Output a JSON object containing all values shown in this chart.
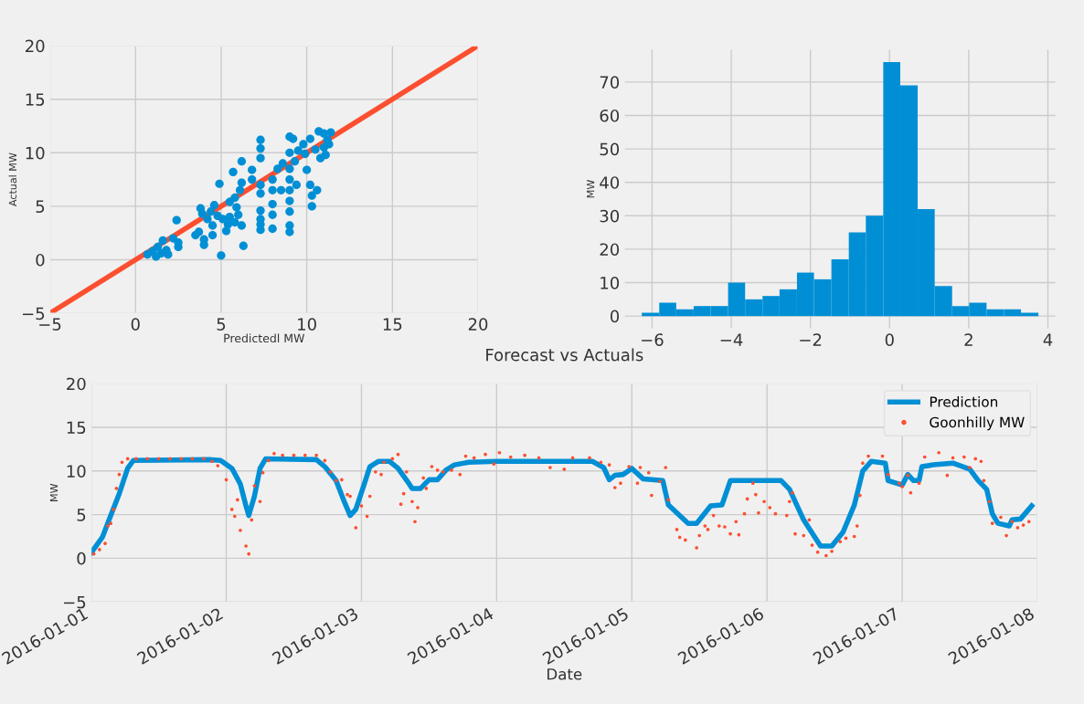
{
  "chart_data": [
    {
      "type": "scatter",
      "xlabel": "Predictedl MW",
      "ylabel": "Actual MW",
      "xlim": [
        -5,
        20
      ],
      "ylim": [
        -5,
        20
      ],
      "xticks": [
        {
          "value": -5,
          "label": "−5"
        },
        0,
        5,
        10,
        15,
        20
      ],
      "yticks": [
        {
          "value": -5,
          "label": "−5"
        },
        0,
        5,
        10,
        15,
        20
      ],
      "grid": true,
      "series": [
        {
          "color": "#008fd5",
          "marker": "circle",
          "x": [
            0.7,
            1.0,
            1.2,
            1.3,
            1.5,
            1.6,
            1.8,
            1.9,
            2.2,
            2.4,
            2.5,
            2.5,
            3.5,
            3.7,
            3.8,
            3.9,
            4.0,
            4.0,
            4.2,
            4.4,
            4.5,
            4.5,
            4.6,
            4.8,
            4.9,
            5.0,
            5.1,
            5.3,
            5.4,
            5.5,
            5.5,
            5.8,
            5.8,
            5.9,
            6.0,
            6.1,
            6.2,
            6.2,
            6.2,
            6.3,
            5.7,
            6.8,
            6.8,
            7.3,
            7.3,
            7.3,
            7.3,
            7.3,
            7.3,
            7.3,
            7.3,
            7.3,
            8.0,
            8.0,
            8.0,
            8.0,
            8.0,
            8.3,
            8.5,
            8.6,
            9.0,
            9.0,
            9.0,
            9.0,
            9.0,
            9.0,
            9.0,
            9.0,
            9.0,
            9.2,
            9.3,
            9.4,
            9.5,
            9.8,
            9.9,
            10.0,
            10.2,
            10.2,
            10.3,
            10.3,
            10.5,
            10.6,
            10.7,
            10.8,
            11.0,
            11.0,
            11.1,
            11.2,
            11.4,
            11.3
          ],
          "values": [
            0.5,
            0.8,
            0.3,
            1.2,
            0.6,
            1.8,
            0.9,
            0.5,
            2.0,
            3.7,
            1.2,
            1.6,
            2.3,
            2.6,
            4.8,
            4.3,
            1.4,
            1.9,
            3.8,
            4.5,
            2.3,
            3.2,
            5.1,
            4.1,
            7.1,
            0.4,
            3.8,
            2.7,
            3.3,
            4.0,
            5.4,
            5.8,
            3.5,
            4.9,
            4.2,
            6.5,
            3.2,
            7.2,
            9.2,
            1.3,
            8.2,
            8.4,
            7.5,
            11.2,
            10.4,
            9.5,
            7.0,
            6.2,
            4.6,
            3.8,
            3.3,
            2.8,
            7.5,
            6.5,
            5.2,
            4.2,
            2.9,
            8.5,
            6.5,
            9.0,
            11.5,
            10.0,
            8.5,
            7.5,
            6.5,
            5.5,
            4.5,
            3.2,
            2.6,
            11.3,
            9.2,
            7.0,
            10.2,
            10.8,
            9.9,
            8.4,
            11.3,
            7.0,
            6.0,
            5.0,
            10.3,
            6.5,
            12.0,
            9.5,
            11.8,
            10.5,
            9.8,
            11.2,
            11.9,
            10.8
          ]
        },
        {
          "type": "line",
          "color": "#fc4f30",
          "x": [
            -5,
            20
          ],
          "values": [
            -5,
            20
          ]
        }
      ]
    },
    {
      "type": "histogram",
      "ylabel": "MW",
      "color": "#008fd5",
      "xlim": [
        -6.7,
        4.2
      ],
      "ylim": [
        -3.8,
        79.8
      ],
      "xticks": [
        {
          "value": -6,
          "label": "−6"
        },
        {
          "value": -4,
          "label": "−4"
        },
        {
          "value": -2,
          "label": "−2"
        },
        0,
        2,
        4
      ],
      "yticks": [
        0,
        10,
        20,
        30,
        40,
        50,
        60,
        70
      ],
      "grid": true,
      "bins": [
        -6.26,
        -5.82,
        -5.39,
        -4.95,
        -4.52,
        -4.08,
        -3.65,
        -3.21,
        -2.78,
        -2.34,
        -1.91,
        -1.47,
        -1.03,
        -0.6,
        -0.16,
        0.27,
        0.71,
        1.14,
        1.58,
        2.01,
        2.45,
        2.89,
        3.32,
        3.76
      ],
      "values": [
        1,
        4,
        2,
        3,
        3,
        10,
        5,
        6,
        8,
        13,
        11,
        17,
        25,
        30,
        76,
        69,
        32,
        9,
        3,
        4,
        2,
        2,
        1
      ]
    },
    {
      "type": "line",
      "title": "Forecast vs Actuals",
      "xlabel": "Date",
      "ylabel": "MW",
      "xlim": [
        "2016-01-01",
        "2016-01-08"
      ],
      "ylim": [
        -5,
        20
      ],
      "xticks": [
        "2016-01-01",
        "2016-01-02",
        "2016-01-03",
        "2016-01-04",
        "2016-01-05",
        "2016-01-06",
        "2016-01-07",
        "2016-01-08"
      ],
      "yticks": [
        {
          "value": -5,
          "label": "−5"
        },
        0,
        5,
        10,
        15,
        20
      ],
      "grid": true,
      "legend": "top right",
      "series": [
        {
          "name": "Prediction",
          "color": "#008fd5",
          "x": [
            "2016-01-01T00:00",
            "2016-01-01T02:00",
            "2016-01-01T03:30",
            "2016-01-01T05:00",
            "2016-01-01T06:30",
            "2016-01-01T07:30",
            "2016-01-01T21:00",
            "2016-01-01T23:00",
            "2016-01-02T01:00",
            "2016-01-02T02:30",
            "2016-01-02T03:30",
            "2016-01-02T04:00",
            "2016-01-02T05:00",
            "2016-01-02T06:00",
            "2016-01-02T07:00",
            "2016-01-02T16:00",
            "2016-01-02T17:30",
            "2016-01-02T19:30",
            "2016-01-02T21:00",
            "2016-01-02T22:00",
            "2016-01-02T23:00",
            "2016-01-03T00:30",
            "2016-01-03T01:30",
            "2016-01-03T03:00",
            "2016-01-03T05:00",
            "2016-01-03T06:30",
            "2016-01-03T08:30",
            "2016-01-03T09:00",
            "2016-01-03T10:30",
            "2016-01-03T12:00",
            "2016-01-03T13:30",
            "2016-01-03T15:00",
            "2016-01-03T16:30",
            "2016-01-03T19:00",
            "2016-01-04T00:00",
            "2016-01-04T17:00",
            "2016-01-04T19:00",
            "2016-01-04T20:00",
            "2016-01-04T21:00",
            "2016-01-04T22:30",
            "2016-01-05T00:00",
            "2016-01-05T02:00",
            "2016-01-05T05:30",
            "2016-01-05T06:30",
            "2016-01-05T10:00",
            "2016-01-05T11:30",
            "2016-01-05T14:00",
            "2016-01-05T16:00",
            "2016-01-05T17:30",
            "2016-01-06T02:30",
            "2016-01-06T04:00",
            "2016-01-06T06:30",
            "2016-01-06T09:30",
            "2016-01-06T11:30",
            "2016-01-06T13:30",
            "2016-01-06T15:30",
            "2016-01-06T17:00",
            "2016-01-06T18:30",
            "2016-01-06T21:00",
            "2016-01-06T21:30",
            "2016-01-07T00:00",
            "2016-01-07T01:00",
            "2016-01-07T02:00",
            "2016-01-07T03:00",
            "2016-01-07T03:30",
            "2016-01-07T05:30",
            "2016-01-07T09:00",
            "2016-01-07T12:00",
            "2016-01-07T13:30",
            "2016-01-07T15:00",
            "2016-01-07T16:00",
            "2016-01-07T17:00",
            "2016-01-07T19:00",
            "2016-01-07T19:30",
            "2016-01-07T21:00",
            "2016-01-07T23:00"
          ],
          "values": [
            0.6,
            2.4,
            4.9,
            7.4,
            10.3,
            11.2,
            11.3,
            11.2,
            10.3,
            8.5,
            6.0,
            4.9,
            7.1,
            10.3,
            11.4,
            11.3,
            10.5,
            8.9,
            6.4,
            4.9,
            5.6,
            8.5,
            10.5,
            11.1,
            11.1,
            10.3,
            8.5,
            8.0,
            8.0,
            9.0,
            9.0,
            10.1,
            10.7,
            11.0,
            11.1,
            11.1,
            10.4,
            9.0,
            9.5,
            9.6,
            10.3,
            9.1,
            8.9,
            6.1,
            4.0,
            4.0,
            6.0,
            6.1,
            8.9,
            8.9,
            7.9,
            4.4,
            1.4,
            1.4,
            3.0,
            6.1,
            10.0,
            11.1,
            10.9,
            8.9,
            8.4,
            9.6,
            8.9,
            8.9,
            10.5,
            10.7,
            10.9,
            10.2,
            8.9,
            7.9,
            5.1,
            4.0,
            3.7,
            4.4,
            4.5,
            6.0
          ]
        },
        {
          "name": "Goonhilly MW",
          "type": "scatter",
          "color": "#fc4f30",
          "marker": "circle",
          "x": [
            "2016-01-01T00:30",
            "2016-01-01T01:30",
            "2016-01-01T02:30",
            "2016-01-01T03:00",
            "2016-01-01T03:30",
            "2016-01-01T04:00",
            "2016-01-01T04:30",
            "2016-01-01T05:00",
            "2016-01-01T05:30",
            "2016-01-01T06:30",
            "2016-01-01T08:00",
            "2016-01-01T10:00",
            "2016-01-01T12:00",
            "2016-01-01T14:00",
            "2016-01-01T16:00",
            "2016-01-01T18:00",
            "2016-01-01T20:00",
            "2016-01-01T21:30",
            "2016-01-01T22:30",
            "2016-01-02T00:00",
            "2016-01-02T01:00",
            "2016-01-02T01:30",
            "2016-01-02T02:00",
            "2016-01-02T02:30",
            "2016-01-02T03:30",
            "2016-01-02T04:00",
            "2016-01-02T04:30",
            "2016-01-02T05:00",
            "2016-01-02T06:00",
            "2016-01-02T06:30",
            "2016-01-02T07:30",
            "2016-01-02T08:30",
            "2016-01-02T10:00",
            "2016-01-02T12:00",
            "2016-01-02T14:00",
            "2016-01-02T16:00",
            "2016-01-02T17:30",
            "2016-01-02T18:30",
            "2016-01-02T19:30",
            "2016-01-02T20:30",
            "2016-01-02T21:30",
            "2016-01-02T22:00",
            "2016-01-02T23:00",
            "2016-01-03T00:00",
            "2016-01-03T01:00",
            "2016-01-03T01:30",
            "2016-01-03T02:30",
            "2016-01-03T03:30",
            "2016-01-03T04:00",
            "2016-01-03T05:30",
            "2016-01-03T06:30",
            "2016-01-03T07:00",
            "2016-01-03T07:30",
            "2016-01-03T08:00",
            "2016-01-03T09:00",
            "2016-01-03T09:30",
            "2016-01-03T10:00",
            "2016-01-03T11:00",
            "2016-01-03T11:30",
            "2016-01-03T12:30",
            "2016-01-03T13:30",
            "2016-01-03T14:30",
            "2016-01-03T16:00",
            "2016-01-03T17:30",
            "2016-01-03T18:30",
            "2016-01-03T20:00",
            "2016-01-03T22:00",
            "2016-01-03T23:30",
            "2016-01-04T00:30",
            "2016-01-04T02:30",
            "2016-01-04T05:00",
            "2016-01-04T07:30",
            "2016-01-04T09:30",
            "2016-01-04T12:00",
            "2016-01-04T13:30",
            "2016-01-04T16:30",
            "2016-01-04T18:30",
            "2016-01-04T20:00",
            "2016-01-04T21:00",
            "2016-01-04T22:00",
            "2016-01-04T23:30",
            "2016-01-05T01:00",
            "2016-01-05T01:30",
            "2016-01-05T03:00",
            "2016-01-05T03:30",
            "2016-01-05T05:00",
            "2016-01-05T06:00",
            "2016-01-05T06:30",
            "2016-01-05T08:00",
            "2016-01-05T08:30",
            "2016-01-05T09:30",
            "2016-01-05T11:30",
            "2016-01-05T12:00",
            "2016-01-05T13:00",
            "2016-01-05T13:30",
            "2016-01-05T14:30",
            "2016-01-05T15:30",
            "2016-01-05T16:30",
            "2016-01-05T17:30",
            "2016-01-05T18:30",
            "2016-01-05T19:00",
            "2016-01-05T20:00",
            "2016-01-05T20:30",
            "2016-01-05T21:30",
            "2016-01-05T22:00",
            "2016-01-05T22:30",
            "2016-01-05T23:30",
            "2016-01-06T00:30",
            "2016-01-06T01:30",
            "2016-01-06T03:30",
            "2016-01-06T04:00",
            "2016-01-06T04:30",
            "2016-01-06T05:00",
            "2016-01-06T06:30",
            "2016-01-06T07:30",
            "2016-01-06T08:00",
            "2016-01-06T09:00",
            "2016-01-06T10:30",
            "2016-01-06T11:30",
            "2016-01-06T13:00",
            "2016-01-06T14:00",
            "2016-01-06T15:30",
            "2016-01-06T16:00",
            "2016-01-06T16:30",
            "2016-01-06T17:00",
            "2016-01-06T18:00",
            "2016-01-06T20:30",
            "2016-01-06T21:30",
            "2016-01-06T23:30",
            "2016-01-07T00:00",
            "2016-01-07T01:00",
            "2016-01-07T01:30",
            "2016-01-07T03:00",
            "2016-01-07T04:00",
            "2016-01-07T06:30",
            "2016-01-07T08:00",
            "2016-01-07T09:00",
            "2016-01-07T11:00",
            "2016-01-07T12:00",
            "2016-01-07T13:00",
            "2016-01-07T14:00",
            "2016-01-07T14:30",
            "2016-01-07T15:30",
            "2016-01-07T16:00",
            "2016-01-07T17:30",
            "2016-01-07T18:30",
            "2016-01-07T19:30",
            "2016-01-07T20:30",
            "2016-01-07T21:30",
            "2016-01-07T22:30"
          ],
          "values": [
            0.5,
            1.0,
            1.7,
            3.7,
            4.0,
            5.6,
            8.0,
            9.6,
            11.0,
            11.4,
            11.4,
            11.4,
            11.4,
            11.4,
            11.4,
            11.4,
            11.4,
            11.1,
            10.6,
            9.0,
            5.6,
            4.8,
            6.7,
            3.2,
            1.4,
            0.5,
            4.4,
            8.3,
            6.5,
            9.8,
            11.2,
            12.0,
            11.8,
            11.8,
            11.8,
            11.8,
            11.2,
            9.9,
            8.9,
            9.0,
            7.3,
            7.1,
            3.5,
            6.0,
            4.8,
            7.1,
            9.9,
            9.6,
            11.0,
            11.4,
            11.9,
            6.2,
            7.4,
            9.9,
            6.5,
            4.2,
            5.8,
            9.2,
            8.0,
            10.5,
            10.1,
            9.9,
            10.1,
            9.6,
            11.7,
            11.5,
            11.9,
            10.8,
            12.1,
            11.6,
            11.8,
            11.5,
            10.4,
            10.2,
            11.5,
            11.5,
            11.0,
            10.7,
            8.1,
            8.6,
            10.5,
            8.6,
            10.4,
            9.8,
            7.2,
            8.8,
            10.4,
            6.7,
            3.3,
            2.4,
            2.1,
            1.2,
            2.6,
            3.7,
            3.3,
            4.9,
            3.7,
            3.6,
            2.8,
            4.2,
            2.7,
            5.1,
            6.8,
            8.6,
            7.3,
            5.2,
            6.5,
            5.8,
            5.1,
            4.9,
            6.5,
            7.5,
            2.8,
            2.6,
            4.4,
            1.5,
            0.7,
            0.3,
            0.8,
            1.9,
            2.3,
            2.5,
            3.7,
            7.2,
            10.9,
            11.7,
            11.7,
            9.6,
            8.6,
            8.2,
            9.5,
            7.5,
            8.6,
            11.6,
            12.1,
            9.5,
            11.5,
            11.6,
            10.4,
            11.4,
            11.1,
            8.9,
            6.5,
            4.0,
            4.7,
            2.6,
            4.2,
            3.5,
            3.8,
            4.2
          ]
        }
      ]
    }
  ]
}
